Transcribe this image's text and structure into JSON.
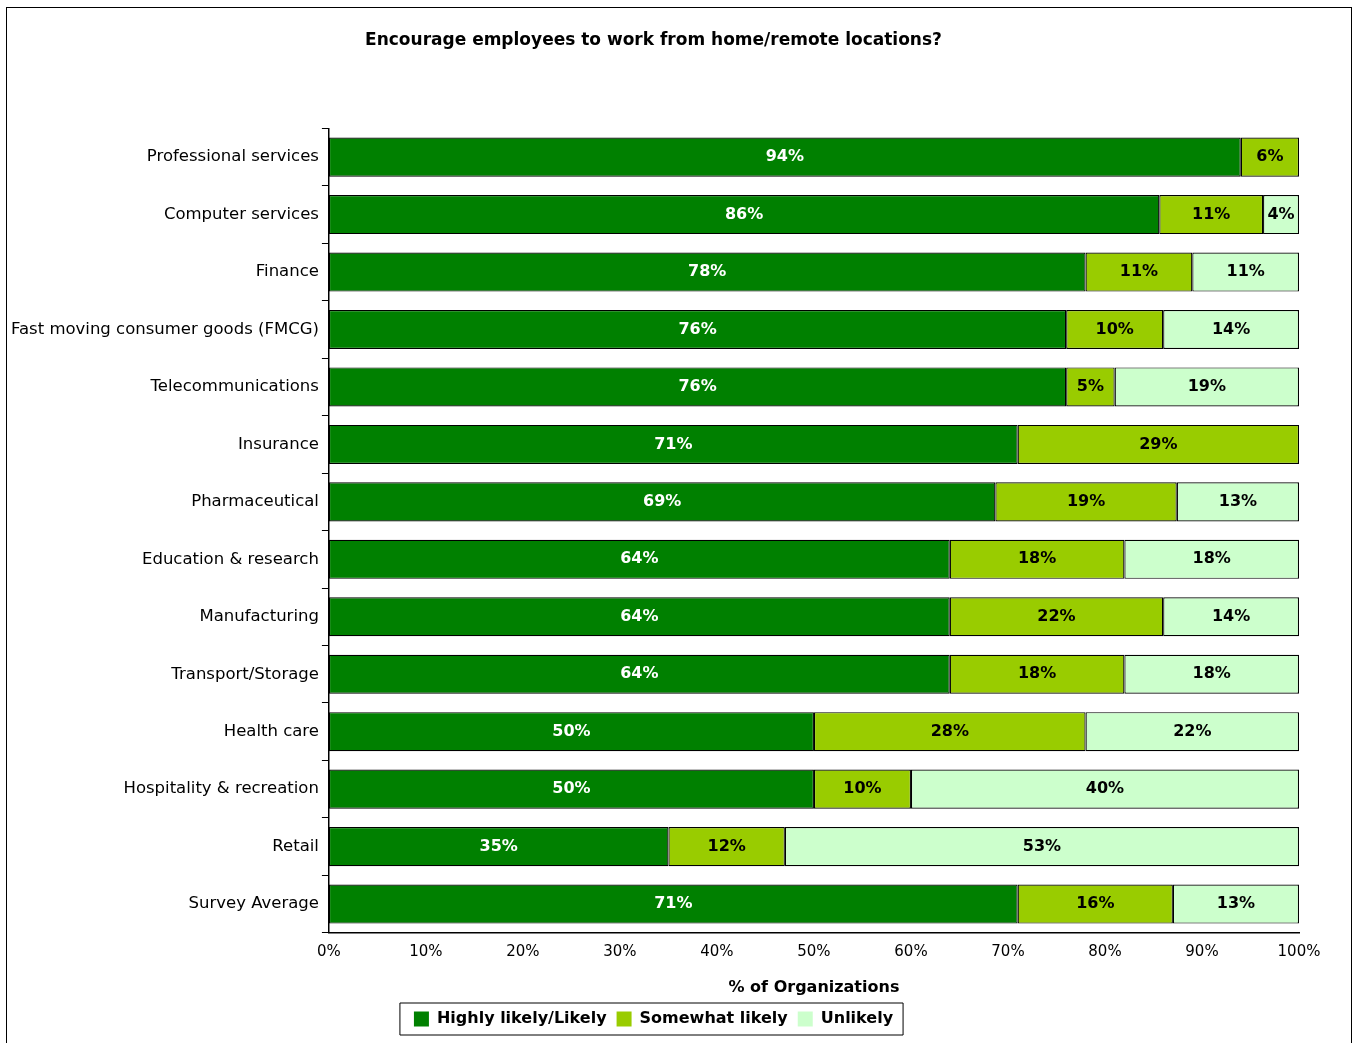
{
  "chart_data": {
    "type": "bar",
    "orientation": "horizontal",
    "stacked": true,
    "title": "Encourage employees to work from home/remote locations?",
    "xlabel": "% of Organizations",
    "categories": [
      "Professional services",
      "Computer services",
      "Finance",
      "Fast moving consumer goods (FMCG)",
      "Telecommunications",
      "Insurance",
      "Pharmaceutical",
      "Education & research",
      "Manufacturing",
      "Transport/Storage",
      "Health care",
      "Hospitality & recreation",
      "Retail",
      "Survey Average"
    ],
    "series": [
      {
        "name": "Highly likely/Likely",
        "color": "#008000",
        "values": [
          94,
          85.6,
          78,
          76,
          76,
          71,
          68.7,
          64,
          64,
          64,
          50,
          50,
          35,
          71
        ],
        "value_labels": [
          "94%",
          "86%",
          "78%",
          "76%",
          "76%",
          "71%",
          "69%",
          "64%",
          "64%",
          "64%",
          "50%",
          "50%",
          "35%",
          "71%"
        ]
      },
      {
        "name": "Somewhat likely",
        "color": "#99cc00",
        "values": [
          6,
          10.7,
          11,
          10,
          5,
          29,
          18.7,
          18,
          22,
          18,
          28,
          10,
          12,
          16
        ],
        "value_labels": [
          "6%",
          "11%",
          "11%",
          "10%",
          "5%",
          "29%",
          "19%",
          "18%",
          "22%",
          "18%",
          "28%",
          "10%",
          "12%",
          "16%"
        ]
      },
      {
        "name": "Unlikely",
        "color": "#ccffcc",
        "values": [
          0,
          3.7,
          11,
          14,
          19,
          0,
          12.6,
          18,
          14,
          18,
          22,
          40,
          53,
          13
        ],
        "value_labels": [
          null,
          "4%",
          "11%",
          "14%",
          "19%",
          null,
          "13%",
          "18%",
          "14%",
          "18%",
          "22%",
          "40%",
          "53%",
          "13%"
        ]
      }
    ],
    "xlim": [
      0,
      100
    ],
    "xticks": [
      {
        "value": 0,
        "label": "0%"
      },
      {
        "value": 10,
        "label": "10%"
      },
      {
        "value": 20,
        "label": "20%"
      },
      {
        "value": 30,
        "label": "30%"
      },
      {
        "value": 40,
        "label": "40%"
      },
      {
        "value": 50,
        "label": "50%"
      },
      {
        "value": 60,
        "label": "60%"
      },
      {
        "value": 70,
        "label": "70%"
      },
      {
        "value": 80,
        "label": "80%"
      },
      {
        "value": 90,
        "label": "90%"
      },
      {
        "value": 100,
        "label": "100%"
      }
    ],
    "grid": false,
    "legend": "bottom"
  }
}
